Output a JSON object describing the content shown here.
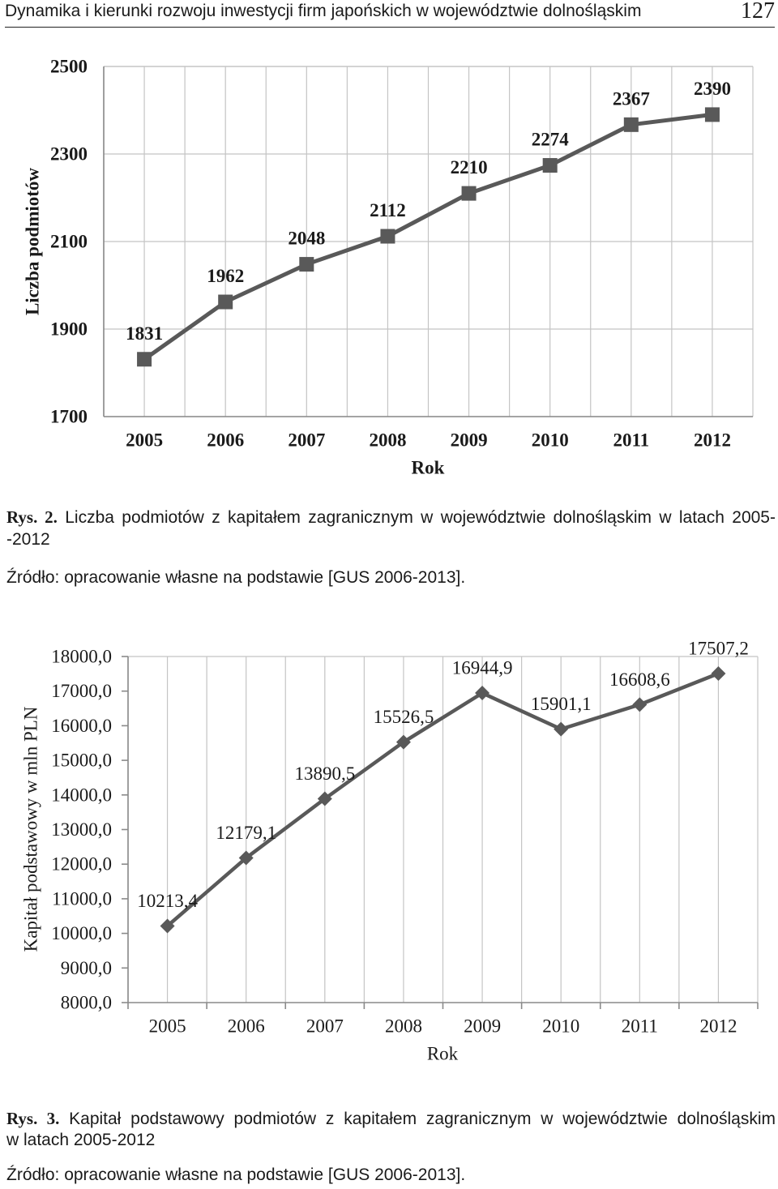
{
  "header": {
    "running_title": "Dynamika i kierunki rozwoju inwestycji firm japońskich w województwie dolnośląskim",
    "page_number": "127"
  },
  "figures": [
    {
      "label": "Rys. 2.",
      "caption_line1": "Liczba podmiotów z kapitałem zagranicznym w województwie dolnośląskim w latach 2005-",
      "caption_line2": "-2012",
      "source": "Źródło: opracowanie własne na podstawie [GUS 2006-2013]."
    },
    {
      "label": "Rys. 3.",
      "caption_line1": "Kapitał podstawowy podmiotów z kapitałem zagranicznym w województwie dolnośląskim",
      "caption_line2": "w latach 2005-2012",
      "source": "Źródło: opracowanie własne na podstawie [GUS 2006-2013]."
    }
  ],
  "chart_data": [
    {
      "type": "line",
      "categories": [
        "2005",
        "2006",
        "2007",
        "2008",
        "2009",
        "2010",
        "2011",
        "2012"
      ],
      "values": [
        1831,
        1962,
        2048,
        2112,
        2210,
        2274,
        2367,
        2390
      ],
      "xlabel": "Rok",
      "ylabel": "Liczba podmiotów",
      "ylim": [
        1700,
        2500
      ],
      "yticks": [
        "1700",
        "1900",
        "2100",
        "2300",
        "2500"
      ],
      "grid": {
        "x": true,
        "y": true
      },
      "marker": "square",
      "color": "#595959"
    },
    {
      "type": "line",
      "categories": [
        "2005",
        "2006",
        "2007",
        "2008",
        "2009",
        "2010",
        "2011",
        "2012"
      ],
      "values": [
        10213.4,
        12179.1,
        13890.5,
        15526.5,
        16944.9,
        15901.1,
        16608.6,
        17507.2
      ],
      "data_labels": [
        "10213,4",
        "12179,1",
        "13890,5",
        "15526,5",
        "16944,9",
        "15901,1",
        "16608,6",
        "17507,2"
      ],
      "xlabel": "Rok",
      "ylabel": "Kapitał podstawowy w mln PLN",
      "ylim": [
        8000,
        18000
      ],
      "yticks": [
        "8000,0",
        "9000,0",
        "10000,0",
        "11000,0",
        "12000,0",
        "13000,0",
        "14000,0",
        "15000,0",
        "16000,0",
        "17000,0",
        "18000,0"
      ],
      "grid": {
        "x": true,
        "y": false
      },
      "marker": "diamond",
      "color": "#595959"
    }
  ]
}
